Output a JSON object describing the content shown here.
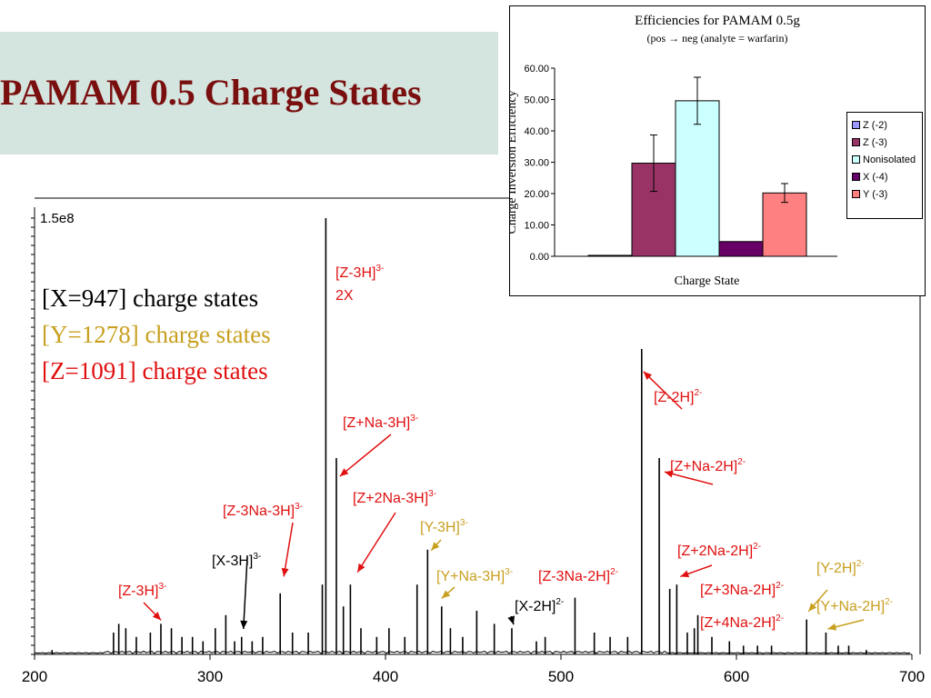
{
  "slide": {
    "title": "PAMAM 0.5 Charge States",
    "legend": [
      {
        "text": "[X=947] charge states",
        "color": "#000000"
      },
      {
        "text": "[Y=1278] charge states",
        "color": "#c8a020"
      },
      {
        "text": "[Z=1091] charge states",
        "color": "#e01010"
      }
    ]
  },
  "chart_data": [
    {
      "type": "line",
      "xlim": [
        200,
        700
      ],
      "x_ticks": [
        "200",
        "300",
        "400",
        "500",
        "600",
        "700"
      ],
      "y_max_label": "1.5e8",
      "ylim": [
        0,
        150000000
      ],
      "peaks": [
        [
          210,
          0.01
        ],
        [
          245,
          0.05
        ],
        [
          248,
          0.07
        ],
        [
          252,
          0.06
        ],
        [
          258,
          0.04
        ],
        [
          266,
          0.05
        ],
        [
          272,
          0.07
        ],
        [
          278,
          0.06
        ],
        [
          284,
          0.04
        ],
        [
          290,
          0.04
        ],
        [
          296,
          0.03
        ],
        [
          303,
          0.06
        ],
        [
          309,
          0.09
        ],
        [
          314,
          0.03
        ],
        [
          318,
          0.04
        ],
        [
          324,
          0.03
        ],
        [
          330,
          0.04
        ],
        [
          340,
          0.14
        ],
        [
          347,
          0.05
        ],
        [
          356,
          0.05
        ],
        [
          364,
          0.16
        ],
        [
          366,
          1.0
        ],
        [
          372,
          0.45
        ],
        [
          376,
          0.11
        ],
        [
          380,
          0.16
        ],
        [
          386,
          0.06
        ],
        [
          395,
          0.04
        ],
        [
          402,
          0.06
        ],
        [
          411,
          0.04
        ],
        [
          418,
          0.16
        ],
        [
          424,
          0.24
        ],
        [
          432,
          0.11
        ],
        [
          437,
          0.06
        ],
        [
          444,
          0.04
        ],
        [
          452,
          0.1
        ],
        [
          462,
          0.07
        ],
        [
          472,
          0.06
        ],
        [
          486,
          0.03
        ],
        [
          491,
          0.04
        ],
        [
          508,
          0.13
        ],
        [
          519,
          0.05
        ],
        [
          528,
          0.04
        ],
        [
          538,
          0.04
        ],
        [
          546,
          0.7
        ],
        [
          556,
          0.45
        ],
        [
          562,
          0.15
        ],
        [
          566,
          0.16
        ],
        [
          572,
          0.05
        ],
        [
          576,
          0.06
        ],
        [
          578,
          0.09
        ],
        [
          586,
          0.04
        ],
        [
          596,
          0.03
        ],
        [
          604,
          0.02
        ],
        [
          612,
          0.02
        ],
        [
          620,
          0.02
        ],
        [
          640,
          0.08
        ],
        [
          651,
          0.05
        ],
        [
          658,
          0.02
        ],
        [
          664,
          0.02
        ],
        [
          674,
          0.01
        ]
      ],
      "annotations": [
        {
          "text": "[Z-3H]",
          "sup": "3-",
          "color": "#e01010",
          "x": 271,
          "y": 0.07
        },
        {
          "text": "[X-3H]",
          "sup": "3-",
          "color": "#000000",
          "x": 318,
          "y": 0.05
        },
        {
          "text": "[Z-3Na-3H]",
          "sup": "3-",
          "color": "#e01010",
          "x": 341,
          "y": 0.17
        },
        {
          "text": "[Z-3H]",
          "sup": "3-",
          "color": "#e01010",
          "x": 366,
          "y": 1.0
        },
        {
          "text": "2X",
          "sup": "",
          "color": "#e01010",
          "x": 366,
          "y": 1.0
        },
        {
          "text": "[Z+Na-3H]",
          "sup": "3-",
          "color": "#e01010",
          "x": 373,
          "y": 0.4
        },
        {
          "text": "[Z+2Na-3H]",
          "sup": "3-",
          "color": "#e01010",
          "x": 383,
          "y": 0.18
        },
        {
          "text": "[Y-3H]",
          "sup": "3-",
          "color": "#c8a020",
          "x": 425,
          "y": 0.23
        },
        {
          "text": "[Y+Na-3H]",
          "sup": "3-",
          "color": "#c8a020",
          "x": 431,
          "y": 0.12
        },
        {
          "text": "[Z-3Na-2H]",
          "sup": "2-",
          "color": "#e01010",
          "x": 508,
          "y": 0.14
        },
        {
          "text": "[X-2H]",
          "sup": "2-",
          "color": "#000000",
          "x": 472,
          "y": 0.06
        },
        {
          "text": "[Z-2H]",
          "sup": "2-",
          "color": "#e01010",
          "x": 546,
          "y": 0.64
        },
        {
          "text": "[Z+Na-2H]",
          "sup": "2-",
          "color": "#e01010",
          "x": 558,
          "y": 0.41
        },
        {
          "text": "[Z+2Na-2H]",
          "sup": "2-",
          "color": "#e01010",
          "x": 567,
          "y": 0.17
        },
        {
          "text": "[Z+3Na-2H]",
          "sup": "2-",
          "color": "#e01010",
          "x": 576,
          "y": 0.09
        },
        {
          "text": "[Z+4Na-2H]",
          "sup": "2-",
          "color": "#e01010",
          "x": 578,
          "y": 0.07
        },
        {
          "text": "[Y-2H]",
          "sup": "2-",
          "color": "#c8a020",
          "x": 640,
          "y": 0.09
        },
        {
          "text": "[Y+Na-2H]",
          "sup": "2-",
          "color": "#c8a020",
          "x": 651,
          "y": 0.05
        }
      ]
    },
    {
      "type": "bar",
      "title": "Efficiencies for PAMAM 0.5g",
      "subtitle": "(pos → neg (analyte = warfarin)",
      "xlabel": "Charge State",
      "ylabel": "Charge Inversion Efficiency",
      "ylim": [
        0,
        60
      ],
      "y_ticks": [
        "0.00",
        "10.00",
        "20.00",
        "30.00",
        "40.00",
        "50.00",
        "60.00"
      ],
      "series": [
        {
          "name": "Z (-2)",
          "value": 0.3,
          "error": 0,
          "color": "#9999ff"
        },
        {
          "name": "Z (-3)",
          "value": 29.7,
          "error": 9,
          "color": "#993366"
        },
        {
          "name": "Nonisolated",
          "value": 49.6,
          "error": 7.5,
          "color": "#ccffff"
        },
        {
          "name": "X (-4)",
          "value": 4.7,
          "error": 0,
          "color": "#660066"
        },
        {
          "name": "Y (-3)",
          "value": 20.2,
          "error": 3,
          "color": "#ff8080"
        }
      ]
    }
  ]
}
